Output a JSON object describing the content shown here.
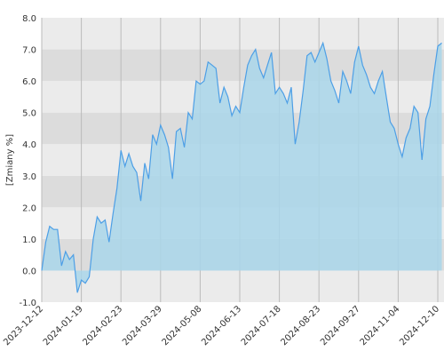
{
  "chart_data": {
    "type": "area",
    "y_label": "[Zmiany %]",
    "categories": [
      "2023-12-12",
      null,
      null,
      null,
      null,
      null,
      null,
      null,
      null,
      null,
      "2024-01-19",
      null,
      null,
      null,
      null,
      null,
      null,
      null,
      null,
      null,
      "2024-02-23",
      null,
      null,
      null,
      null,
      null,
      null,
      null,
      null,
      null,
      "2024-03-29",
      null,
      null,
      null,
      null,
      null,
      null,
      null,
      null,
      null,
      "2024-05-08",
      null,
      null,
      null,
      null,
      null,
      null,
      null,
      null,
      null,
      "2024-06-13",
      null,
      null,
      null,
      null,
      null,
      null,
      null,
      null,
      null,
      "2024-07-18",
      null,
      null,
      null,
      null,
      null,
      null,
      null,
      null,
      null,
      "2024-08-23",
      null,
      null,
      null,
      null,
      null,
      null,
      null,
      null,
      null,
      "2024-09-27",
      null,
      null,
      null,
      null,
      null,
      null,
      null,
      null,
      null,
      "2024-11-04",
      null,
      null,
      null,
      null,
      null,
      null,
      null,
      null,
      null,
      "2024-12-10",
      null
    ],
    "values": [
      0,
      0.9,
      1.4,
      1.3,
      1.3,
      0.15,
      0.6,
      0.35,
      0.5,
      -0.7,
      -0.3,
      -0.4,
      -0.2,
      1.0,
      1.7,
      1.5,
      1.6,
      0.9,
      1.8,
      2.6,
      3.8,
      3.3,
      3.7,
      3.3,
      3.1,
      2.2,
      3.4,
      2.9,
      4.3,
      4.0,
      4.6,
      4.3,
      3.9,
      2.9,
      4.4,
      4.5,
      3.9,
      5.0,
      4.8,
      6.0,
      5.9,
      6.0,
      6.6,
      6.5,
      6.4,
      5.3,
      5.8,
      5.5,
      4.9,
      5.2,
      5.0,
      5.8,
      6.5,
      6.8,
      7.0,
      6.4,
      6.1,
      6.5,
      6.9,
      5.6,
      5.8,
      5.6,
      5.3,
      5.8,
      4.0,
      4.7,
      5.7,
      6.8,
      6.9,
      6.6,
      6.9,
      7.2,
      6.7,
      6.0,
      5.7,
      5.3,
      6.3,
      6.0,
      5.6,
      6.6,
      7.1,
      6.5,
      6.2,
      5.8,
      5.6,
      6.0,
      6.3,
      5.5,
      4.7,
      4.5,
      4.0,
      3.6,
      4.2,
      4.5,
      5.2,
      5.0,
      3.5,
      4.8,
      5.2,
      6.2,
      7.1,
      7.2
    ],
    "color": "#4d9fe6",
    "fill_color": "#a9d6ea",
    "ylim": [
      -1,
      8
    ],
    "yticks": [
      {
        "value": -1,
        "label": "-1.0"
      },
      {
        "value": 0,
        "label": "0.0"
      },
      {
        "value": 1,
        "label": "1.0"
      },
      {
        "value": 2,
        "label": "2.0"
      },
      {
        "value": 3,
        "label": "3.0"
      },
      {
        "value": 4,
        "label": "4.0"
      },
      {
        "value": 5,
        "label": "5.0"
      },
      {
        "value": 6,
        "label": "6.0"
      },
      {
        "value": 7,
        "label": "7.0"
      },
      {
        "value": 8,
        "label": "8.0"
      }
    ],
    "grid": true
  }
}
